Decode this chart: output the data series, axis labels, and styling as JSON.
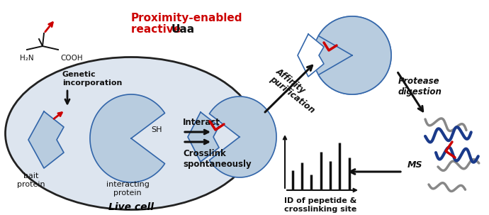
{
  "fig_width": 6.9,
  "fig_height": 3.03,
  "dpi": 100,
  "bg_color": "#ffffff",
  "cell_fill": "#dde5ef",
  "cell_edge": "#222222",
  "protein_fill": "#b8ccdf",
  "protein_edge": "#3366aa",
  "red_color": "#cc0000",
  "blue_peptide": "#1a3a8a",
  "gray_peptide": "#888888",
  "spectrum_bars": [
    0.38,
    0.52,
    0.3,
    0.72,
    0.55,
    0.9,
    0.62
  ],
  "labels": {
    "title_line1": "Proximity-enabled",
    "title_line2": "reactive ",
    "title_uaa": "Uaa",
    "genetic": "Genetic\nincorporation",
    "bait": "bait\nprotein",
    "interacting": "interacting\nprotein",
    "interact": "Interact",
    "crosslink": "Crosslink\nspontaneously",
    "affinity": "Affinity\npurification",
    "protease": "Protease\ndigestion",
    "ms": "MS",
    "id_label": "ID of pepetide &\ncrosslinking site",
    "live_cell": "Live cell",
    "sh": "SH",
    "h2n": "H₂N",
    "cooh": "COOH"
  }
}
